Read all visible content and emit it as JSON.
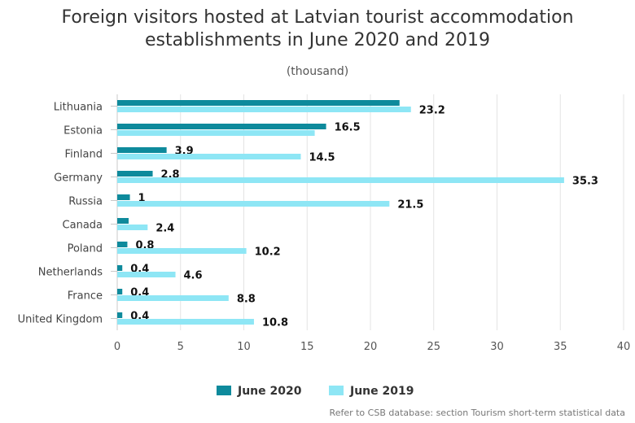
{
  "chart_data": {
    "type": "bar",
    "orientation": "horizontal",
    "title_lines": [
      "Foreign visitors hosted at Latvian tourist accommodation",
      "establishments in June 2020 and 2019"
    ],
    "subtitle": "(thousand)",
    "categories": [
      "Lithuania",
      "Estonia",
      "Finland",
      "Germany",
      "Russia",
      "Canada",
      "Poland",
      "Netherlands",
      "France",
      "United Kingdom"
    ],
    "series": [
      {
        "name": "June 2020",
        "color": "#0e8a9c",
        "values": [
          22.3,
          16.5,
          3.9,
          2.8,
          1,
          0.9,
          0.8,
          0.4,
          0.4,
          0.4
        ],
        "labels": [
          "",
          "16.5",
          "3.9",
          "2.8",
          "1",
          "",
          "0.8",
          "0.4",
          "0.4",
          "0.4"
        ]
      },
      {
        "name": "June 2019",
        "color": "#8ee6f5",
        "values": [
          23.2,
          15.6,
          14.5,
          35.3,
          21.5,
          2.4,
          10.2,
          4.6,
          8.8,
          10.8
        ],
        "labels": [
          "23.2",
          "",
          "14.5",
          "35.3",
          "21.5",
          "2.4",
          "10.2",
          "4.6",
          "8.8",
          "10.8"
        ]
      }
    ],
    "xlim": [
      0,
      40
    ],
    "xticks": [
      "0",
      "5",
      "10",
      "15",
      "20",
      "25",
      "30",
      "35",
      "40"
    ],
    "grid": true,
    "legend_position": "bottom"
  },
  "footer": "Refer to CSB database: section Tourism short-term statistical data"
}
